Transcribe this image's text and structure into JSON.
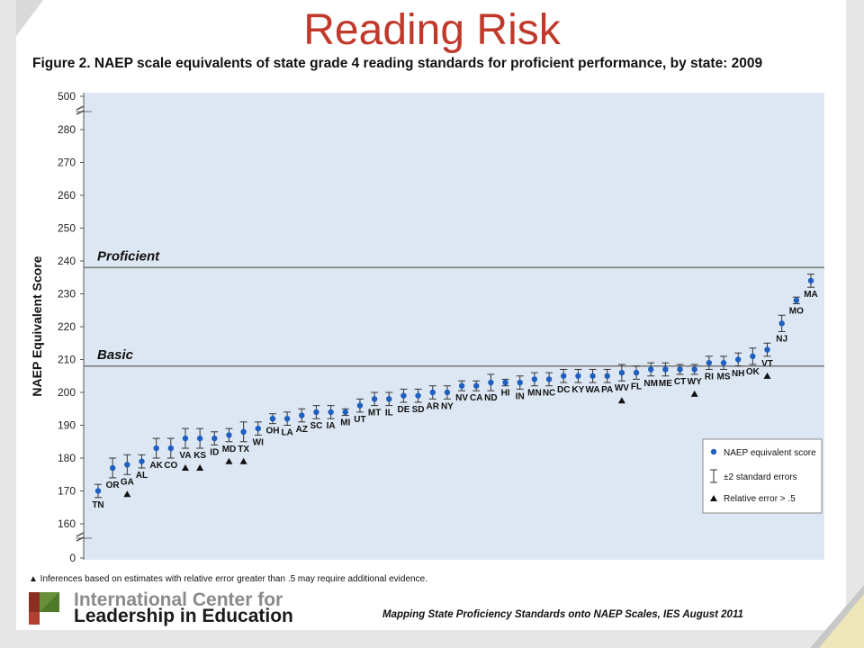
{
  "slide": {
    "title": "Reading Risk",
    "figure_caption": "Figure 2.  NAEP scale equivalents of state grade 4 reading standards for proficient performance, by state: 2009",
    "footnote": "▲ Inferences based on estimates with relative error greater than .5 may require additional evidence.",
    "source": "Mapping State Proficiency Standards onto NAEP Scales, IES August 2011",
    "logo_line1": "International Center for",
    "logo_line2": "Leadership in Education"
  },
  "colors": {
    "title": "#c0392b",
    "plot_bg": "#dde7f3",
    "point": "#1f5fbf",
    "error_bar": "#333333",
    "reference_line": "#777777"
  },
  "chart_data": {
    "type": "scatter",
    "title": "",
    "xlabel": "",
    "ylabel": "NAEP Equivalent Score",
    "y_tick_labels": [
      "0",
      "160",
      "170",
      "180",
      "190",
      "200",
      "210",
      "220",
      "230",
      "240",
      "250",
      "260",
      "270",
      "280",
      "500"
    ],
    "y_ticks": [
      160,
      170,
      180,
      190,
      200,
      210,
      220,
      230,
      240,
      250,
      260,
      270,
      280
    ],
    "ylim": [
      157,
      283
    ],
    "axis_breaks": "bottom (0 to 160) and top (280 to 500)",
    "grid": false,
    "reference_lines": [
      {
        "label": "Proficient",
        "value": 238
      },
      {
        "label": "Basic",
        "value": 208
      }
    ],
    "legend": {
      "position": "bottom-right",
      "entries": [
        "NAEP equivalent score",
        "±2  standard errors",
        "Relative error > .5"
      ]
    },
    "states": [
      "TN",
      "OR",
      "GA",
      "AL",
      "AK",
      "CO",
      "VA",
      "KS",
      "ID",
      "MD",
      "TX",
      "WI",
      "OH",
      "LA",
      "AZ",
      "SC",
      "IA",
      "MI",
      "UT",
      "MT",
      "IL",
      "DE",
      "SD",
      "AR",
      "NY",
      "NV",
      "CA",
      "ND",
      "HI",
      "IN",
      "MN",
      "NC",
      "DC",
      "KY",
      "WA",
      "PA",
      "WV",
      "FL",
      "NM",
      "ME",
      "CT",
      "WY",
      "RI",
      "MS",
      "NH",
      "OK",
      "VT",
      "NJ",
      "MO",
      "MA"
    ],
    "scores": [
      170,
      177,
      178,
      179,
      183,
      183,
      186,
      186,
      186,
      187,
      188,
      189,
      192,
      192,
      193,
      194,
      194,
      194,
      196,
      198,
      198,
      199,
      199,
      200,
      200,
      202,
      202,
      203,
      203,
      203,
      204,
      204,
      205,
      205,
      205,
      205,
      206,
      206,
      207,
      207,
      207,
      207,
      209,
      209,
      210,
      211,
      213,
      221,
      228,
      234
    ],
    "errors": [
      2,
      3,
      3,
      2,
      3,
      3,
      3,
      3,
      2,
      2,
      3,
      2,
      1.5,
      2,
      2,
      2,
      2,
      1,
      2,
      2,
      2,
      2,
      2,
      2,
      2,
      1.5,
      1.5,
      2.5,
      1,
      2,
      2,
      2,
      2,
      2,
      2,
      2,
      2.5,
      2,
      2,
      2,
      1.5,
      1.5,
      2,
      2,
      2,
      2.5,
      2,
      2.5,
      1,
      2
    ],
    "relative_error_flags": [
      "GA",
      "VA",
      "KS",
      "MD",
      "TX",
      "WV",
      "WY",
      "VT"
    ]
  }
}
